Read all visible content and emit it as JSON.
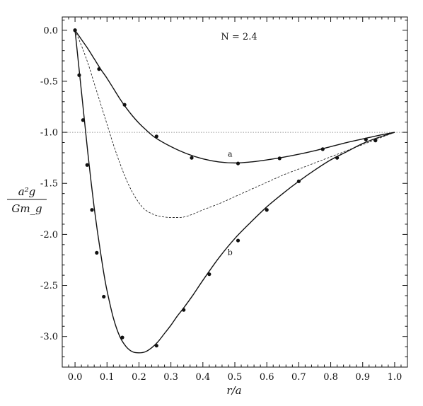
{
  "chart_data": {
    "type": "line",
    "annotation": "N = 2.4",
    "xlabel": "r/a",
    "ylabel_numerator": "a²g",
    "ylabel_denominator": "Gm_g",
    "xlim": [
      -0.04,
      1.04
    ],
    "ylim": [
      -3.3,
      0.13
    ],
    "x_ticks": [
      0.0,
      0.1,
      0.2,
      0.3,
      0.4,
      0.5,
      0.6,
      0.7,
      0.8,
      0.9,
      1.0
    ],
    "x_tick_labels": [
      "0.0",
      "0.1",
      "0.2",
      "0.3",
      "0.4",
      "0.5",
      "0.6",
      "0.7",
      "0.8",
      "0.9",
      "1.0"
    ],
    "y_ticks": [
      0.0,
      -0.5,
      -1.0,
      -1.5,
      -2.0,
      -2.5,
      -3.0
    ],
    "y_tick_labels": [
      "0.0",
      "-0.5",
      "-1.0",
      "-1.5",
      "-2.0",
      "-2.5",
      "-3.0"
    ],
    "reference_line": -1.0,
    "series": [
      {
        "label": "a",
        "label_at": [
          0.485,
          -1.24
        ],
        "style": "solid",
        "curve": [
          [
            0.0,
            0.0
          ],
          [
            0.02,
            -0.09
          ],
          [
            0.04,
            -0.18
          ],
          [
            0.06,
            -0.28
          ],
          [
            0.08,
            -0.38
          ],
          [
            0.1,
            -0.47
          ],
          [
            0.12,
            -0.57
          ],
          [
            0.14,
            -0.67
          ],
          [
            0.16,
            -0.76
          ],
          [
            0.18,
            -0.84
          ],
          [
            0.2,
            -0.91
          ],
          [
            0.22,
            -0.97
          ],
          [
            0.25,
            -1.05
          ],
          [
            0.3,
            -1.14
          ],
          [
            0.35,
            -1.21
          ],
          [
            0.4,
            -1.26
          ],
          [
            0.45,
            -1.29
          ],
          [
            0.5,
            -1.3
          ],
          [
            0.55,
            -1.29
          ],
          [
            0.6,
            -1.27
          ],
          [
            0.65,
            -1.245
          ],
          [
            0.7,
            -1.215
          ],
          [
            0.75,
            -1.18
          ],
          [
            0.8,
            -1.14
          ],
          [
            0.85,
            -1.1
          ],
          [
            0.9,
            -1.065
          ],
          [
            0.95,
            -1.03
          ],
          [
            1.0,
            -1.0
          ]
        ],
        "points": [
          [
            0.0,
            0.0
          ],
          [
            0.075,
            -0.38
          ],
          [
            0.155,
            -0.73
          ],
          [
            0.255,
            -1.04
          ],
          [
            0.365,
            -1.25
          ],
          [
            0.51,
            -1.305
          ],
          [
            0.64,
            -1.255
          ],
          [
            0.775,
            -1.165
          ],
          [
            0.91,
            -1.07
          ]
        ]
      },
      {
        "label": "b",
        "label_at": [
          0.485,
          -2.2
        ],
        "style": "solid",
        "curve": [
          [
            0.0,
            0.0
          ],
          [
            0.01,
            -0.3
          ],
          [
            0.02,
            -0.6
          ],
          [
            0.03,
            -0.9
          ],
          [
            0.04,
            -1.2
          ],
          [
            0.05,
            -1.48
          ],
          [
            0.06,
            -1.74
          ],
          [
            0.07,
            -1.97
          ],
          [
            0.08,
            -2.18
          ],
          [
            0.09,
            -2.38
          ],
          [
            0.1,
            -2.55
          ],
          [
            0.12,
            -2.82
          ],
          [
            0.14,
            -3.0
          ],
          [
            0.16,
            -3.1
          ],
          [
            0.18,
            -3.15
          ],
          [
            0.2,
            -3.16
          ],
          [
            0.22,
            -3.15
          ],
          [
            0.24,
            -3.11
          ],
          [
            0.26,
            -3.05
          ],
          [
            0.28,
            -2.97
          ],
          [
            0.3,
            -2.89
          ],
          [
            0.32,
            -2.8
          ],
          [
            0.34,
            -2.72
          ],
          [
            0.37,
            -2.59
          ],
          [
            0.4,
            -2.45
          ],
          [
            0.45,
            -2.23
          ],
          [
            0.5,
            -2.04
          ],
          [
            0.55,
            -1.88
          ],
          [
            0.6,
            -1.73
          ],
          [
            0.65,
            -1.6
          ],
          [
            0.7,
            -1.48
          ],
          [
            0.75,
            -1.37
          ],
          [
            0.8,
            -1.27
          ],
          [
            0.85,
            -1.19
          ],
          [
            0.9,
            -1.11
          ],
          [
            0.95,
            -1.05
          ],
          [
            1.0,
            -1.0
          ]
        ],
        "points": [
          [
            0.0,
            0.0
          ],
          [
            0.013,
            -0.44
          ],
          [
            0.025,
            -0.88
          ],
          [
            0.038,
            -1.32
          ],
          [
            0.053,
            -1.76
          ],
          [
            0.068,
            -2.18
          ],
          [
            0.09,
            -2.61
          ],
          [
            0.148,
            -3.01
          ],
          [
            0.255,
            -3.09
          ],
          [
            0.34,
            -2.74
          ],
          [
            0.42,
            -2.39
          ],
          [
            0.51,
            -2.06
          ],
          [
            0.6,
            -1.76
          ],
          [
            0.7,
            -1.48
          ],
          [
            0.82,
            -1.25
          ],
          [
            0.94,
            -1.08
          ]
        ]
      },
      {
        "style": "dashed",
        "curve": [
          [
            0.0,
            0.0
          ],
          [
            0.02,
            -0.15
          ],
          [
            0.04,
            -0.32
          ],
          [
            0.06,
            -0.52
          ],
          [
            0.08,
            -0.72
          ],
          [
            0.1,
            -0.92
          ],
          [
            0.12,
            -1.12
          ],
          [
            0.14,
            -1.3
          ],
          [
            0.16,
            -1.46
          ],
          [
            0.18,
            -1.59
          ],
          [
            0.2,
            -1.69
          ],
          [
            0.22,
            -1.76
          ],
          [
            0.25,
            -1.81
          ],
          [
            0.28,
            -1.83
          ],
          [
            0.31,
            -1.835
          ],
          [
            0.34,
            -1.83
          ],
          [
            0.37,
            -1.8
          ],
          [
            0.4,
            -1.76
          ],
          [
            0.45,
            -1.7
          ],
          [
            0.5,
            -1.63
          ],
          [
            0.55,
            -1.56
          ],
          [
            0.6,
            -1.49
          ],
          [
            0.65,
            -1.42
          ],
          [
            0.7,
            -1.36
          ],
          [
            0.75,
            -1.3
          ],
          [
            0.8,
            -1.24
          ],
          [
            0.85,
            -1.18
          ],
          [
            0.9,
            -1.12
          ],
          [
            0.95,
            -1.06
          ],
          [
            1.0,
            -1.0
          ]
        ],
        "points": []
      }
    ]
  }
}
